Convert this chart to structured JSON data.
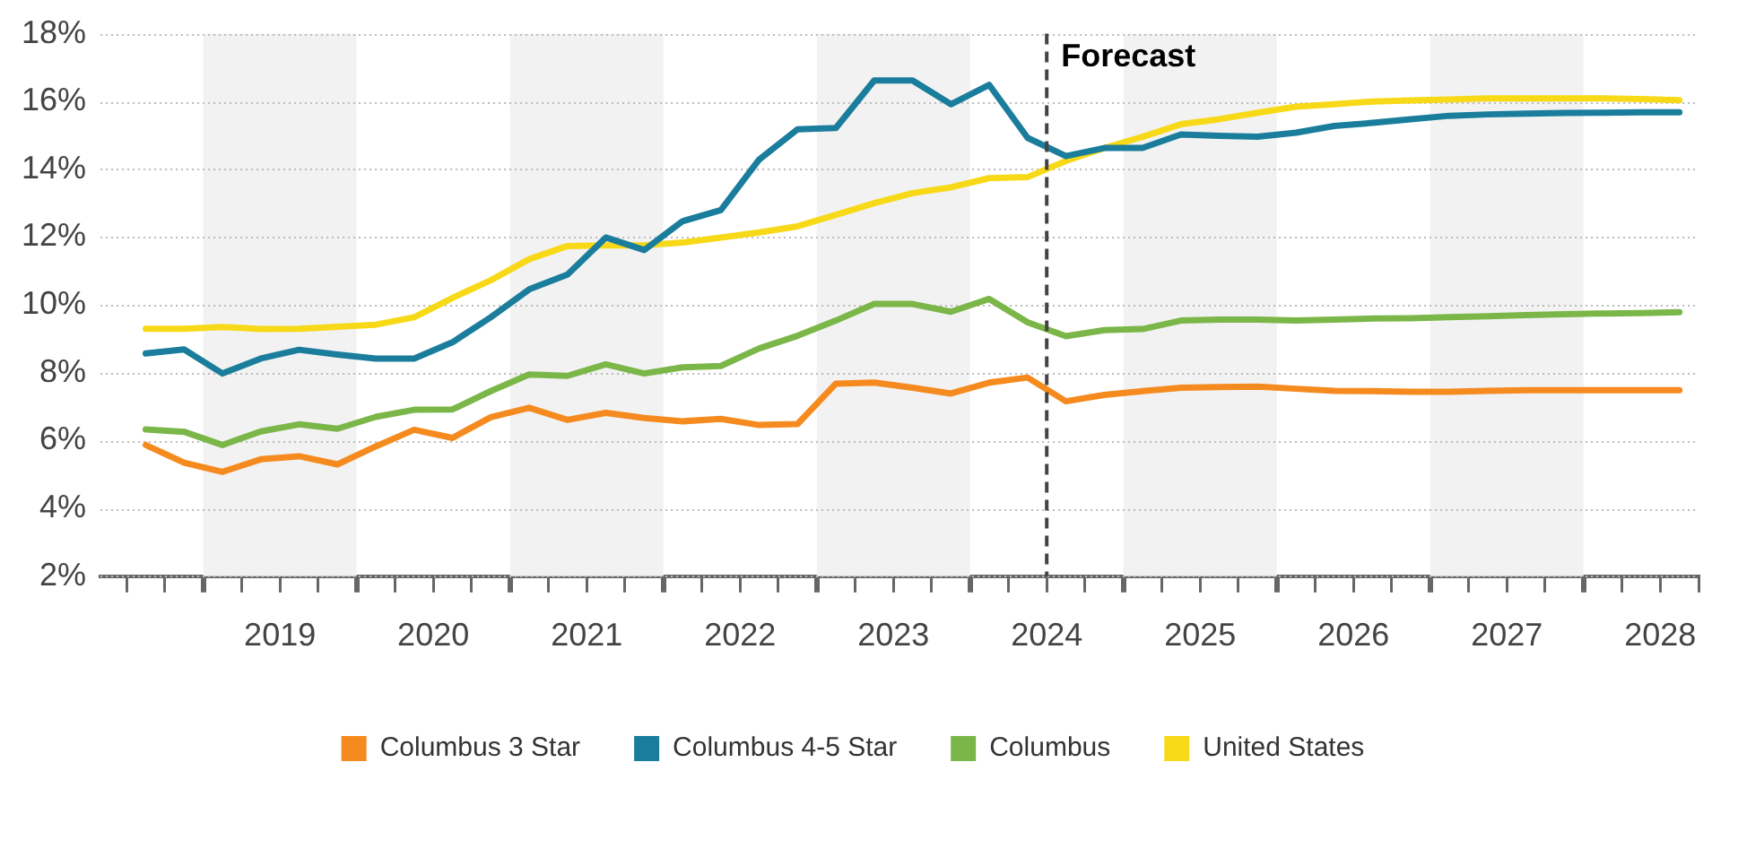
{
  "chart_data": {
    "type": "line",
    "x": [
      2018.625,
      2018.875,
      2019.125,
      2019.375,
      2019.625,
      2019.875,
      2020.125,
      2020.375,
      2020.625,
      2020.875,
      2021.125,
      2021.375,
      2021.625,
      2021.875,
      2022.125,
      2022.375,
      2022.625,
      2022.875,
      2023.125,
      2023.375,
      2023.625,
      2023.875,
      2024.125,
      2024.375,
      2024.625,
      2024.875,
      2025.125,
      2025.375,
      2025.625,
      2025.875,
      2026.125,
      2026.375,
      2026.625,
      2026.875,
      2027.125,
      2027.375,
      2027.625,
      2027.875,
      2028.125,
      2028.375,
      2028.625
    ],
    "series": [
      {
        "name": "Columbus 3 Star",
        "color": "#f58a1f",
        "values": [
          5.87,
          5.35,
          5.08,
          5.45,
          5.54,
          5.3,
          5.83,
          6.32,
          6.08,
          6.69,
          6.97,
          6.61,
          6.82,
          6.67,
          6.57,
          6.64,
          6.46,
          6.49,
          7.68,
          7.71,
          7.56,
          7.39,
          7.71,
          7.86,
          7.16,
          7.35,
          7.46,
          7.56,
          7.58,
          7.59,
          7.53,
          7.47,
          7.46,
          7.44,
          7.44,
          7.47,
          7.49,
          7.49,
          7.49,
          7.49,
          7.49
        ]
      },
      {
        "name": "Columbus 4-5 Star",
        "color": "#1a7d9c",
        "values": [
          8.57,
          8.69,
          7.98,
          8.42,
          8.68,
          8.54,
          8.42,
          8.42,
          8.9,
          9.64,
          10.46,
          10.9,
          11.99,
          11.62,
          12.47,
          12.8,
          14.29,
          15.18,
          15.22,
          16.62,
          16.62,
          15.92,
          16.49,
          14.93,
          14.39,
          14.63,
          14.63,
          15.03,
          14.99,
          14.96,
          15.08,
          15.28,
          15.37,
          15.48,
          15.58,
          15.62,
          15.64,
          15.66,
          15.67,
          15.68,
          15.68
        ]
      },
      {
        "name": "Columbus",
        "color": "#7ab648",
        "values": [
          6.33,
          6.26,
          5.87,
          6.27,
          6.48,
          6.35,
          6.7,
          6.91,
          6.92,
          7.46,
          7.95,
          7.91,
          8.25,
          7.98,
          8.16,
          8.2,
          8.72,
          9.09,
          9.54,
          10.03,
          10.03,
          9.8,
          10.18,
          9.49,
          9.08,
          9.26,
          9.29,
          9.54,
          9.57,
          9.57,
          9.54,
          9.57,
          9.6,
          9.61,
          9.64,
          9.67,
          9.7,
          9.73,
          9.75,
          9.76,
          9.79
        ]
      },
      {
        "name": "United States",
        "color": "#f7d917",
        "values": [
          9.3,
          9.3,
          9.35,
          9.29,
          9.3,
          9.36,
          9.42,
          9.64,
          10.21,
          10.73,
          11.35,
          11.74,
          11.76,
          11.76,
          11.84,
          11.99,
          12.14,
          12.32,
          12.66,
          13.0,
          13.3,
          13.47,
          13.74,
          13.77,
          14.25,
          14.63,
          14.96,
          15.33,
          15.48,
          15.67,
          15.85,
          15.92,
          16.0,
          16.03,
          16.06,
          16.09,
          16.09,
          16.09,
          16.09,
          16.07,
          16.04
        ]
      }
    ],
    "xlim": [
      2018.33,
      2028.75
    ],
    "xticks": [
      {
        "value": 2018.5,
        "label": null
      },
      {
        "value": 2018.75,
        "label": null
      },
      {
        "value": 2019,
        "label": null
      },
      {
        "value": 2019.25,
        "label": null
      },
      {
        "value": 2019.5,
        "label": "2019"
      },
      {
        "value": 2019.75,
        "label": null
      },
      {
        "value": 2020,
        "label": null
      },
      {
        "value": 2020.25,
        "label": null
      },
      {
        "value": 2020.5,
        "label": "2020"
      },
      {
        "value": 2020.75,
        "label": null
      },
      {
        "value": 2021,
        "label": null
      },
      {
        "value": 2021.25,
        "label": null
      },
      {
        "value": 2021.5,
        "label": "2021"
      },
      {
        "value": 2021.75,
        "label": null
      },
      {
        "value": 2022,
        "label": null
      },
      {
        "value": 2022.25,
        "label": null
      },
      {
        "value": 2022.5,
        "label": "2022"
      },
      {
        "value": 2022.75,
        "label": null
      },
      {
        "value": 2023,
        "label": null
      },
      {
        "value": 2023.25,
        "label": null
      },
      {
        "value": 2023.5,
        "label": "2023"
      },
      {
        "value": 2023.75,
        "label": null
      },
      {
        "value": 2024,
        "label": null
      },
      {
        "value": 2024.25,
        "label": null
      },
      {
        "value": 2024.5,
        "label": "2024"
      },
      {
        "value": 2024.75,
        "label": null
      },
      {
        "value": 2025,
        "label": null
      },
      {
        "value": 2025.25,
        "label": null
      },
      {
        "value": 2025.5,
        "label": "2025"
      },
      {
        "value": 2025.75,
        "label": null
      },
      {
        "value": 2026,
        "label": null
      },
      {
        "value": 2026.25,
        "label": null
      },
      {
        "value": 2026.5,
        "label": "2026"
      },
      {
        "value": 2026.75,
        "label": null
      },
      {
        "value": 2027,
        "label": null
      },
      {
        "value": 2027.25,
        "label": null
      },
      {
        "value": 2027.5,
        "label": "2027"
      },
      {
        "value": 2027.75,
        "label": null
      },
      {
        "value": 2028,
        "label": null
      },
      {
        "value": 2028.25,
        "label": null
      },
      {
        "value": 2028.5,
        "label": "2028"
      },
      {
        "value": 2028.75,
        "label": null
      }
    ],
    "ylim": [
      2,
      18
    ],
    "yticks": [
      {
        "value": 2,
        "label": "2%"
      },
      {
        "value": 4,
        "label": "4%"
      },
      {
        "value": 6,
        "label": "6%"
      },
      {
        "value": 8,
        "label": "8%"
      },
      {
        "value": 10,
        "label": "10%"
      },
      {
        "value": 12,
        "label": "12%"
      },
      {
        "value": 14,
        "label": "14%"
      },
      {
        "value": 16,
        "label": "16%"
      },
      {
        "value": 18,
        "label": "18%"
      }
    ],
    "bands": [
      {
        "axis": "x",
        "from": 2019,
        "to": 2020,
        "color": "#f2f2f2"
      },
      {
        "axis": "x",
        "from": 2021,
        "to": 2022,
        "color": "#f2f2f2"
      },
      {
        "axis": "x",
        "from": 2023,
        "to": 2024,
        "color": "#f2f2f2"
      },
      {
        "axis": "x",
        "from": 2025,
        "to": 2026,
        "color": "#f2f2f2"
      },
      {
        "axis": "x",
        "from": 2027,
        "to": 2028,
        "color": "#f2f2f2"
      }
    ],
    "ref_lines": [
      {
        "axis": "x",
        "value": 2024.5,
        "label": "Forecast",
        "color": "#444444",
        "line_style": "dashed"
      }
    ],
    "grid": "y",
    "legend": "bottom",
    "marker": "none",
    "line_style": "solid"
  }
}
